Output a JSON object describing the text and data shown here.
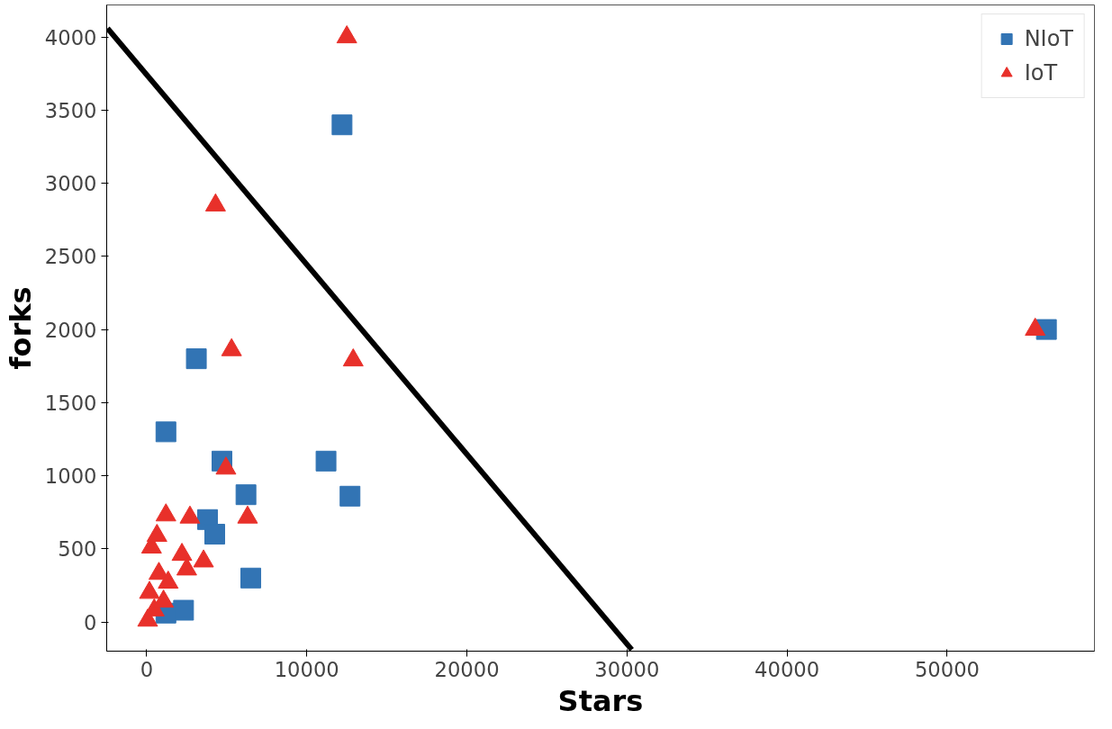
{
  "chart_data": {
    "type": "scatter",
    "xlabel": "Stars",
    "ylabel": "forks",
    "xlim": [
      -2500,
      59200
    ],
    "ylim": [
      -200,
      4220
    ],
    "xticks": [
      0,
      10000,
      20000,
      30000,
      40000,
      50000
    ],
    "yticks": [
      0,
      500,
      1000,
      1500,
      2000,
      2500,
      3000,
      3500,
      4000
    ],
    "grid": false,
    "legend": "top right",
    "series": [
      {
        "name": "NIoT",
        "color": "#3274b4",
        "marker": "square",
        "x": [
          12200,
          56200,
          3100,
          1200,
          4700,
          11200,
          6200,
          12700,
          3800,
          4250,
          6500,
          2300,
          1200
        ],
        "values": [
          3400,
          2000,
          1800,
          1300,
          1100,
          1100,
          870,
          860,
          700,
          600,
          300,
          80,
          60
        ]
      },
      {
        "name": "IoT",
        "color": "#e8302a",
        "marker": "triangle",
        "x": [
          12500,
          55500,
          4300,
          5300,
          12900,
          4950,
          6300,
          2700,
          1200,
          3550,
          2200,
          300,
          760,
          170,
          470,
          60,
          1340,
          1050,
          640,
          2500
        ],
        "values": [
          4000,
          2000,
          2850,
          1860,
          1790,
          1050,
          715,
          715,
          730,
          415,
          460,
          510,
          330,
          200,
          80,
          10,
          270,
          140,
          590,
          360
        ]
      },
      {
        "type": "line",
        "color": "#000000",
        "x": [
          -2450,
          30300
        ],
        "values": [
          4060,
          -190
        ]
      }
    ]
  }
}
